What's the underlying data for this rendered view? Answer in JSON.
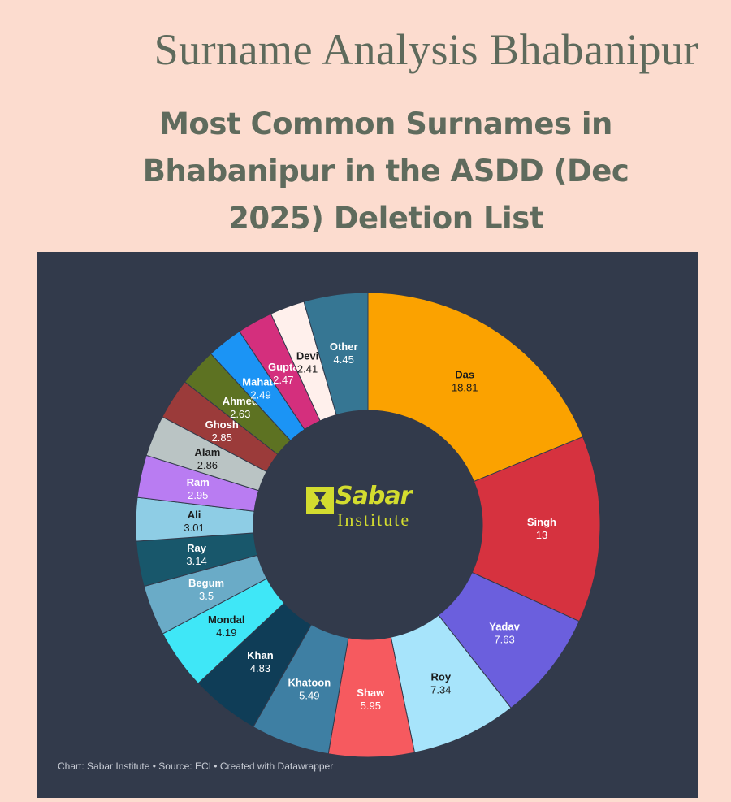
{
  "page_title": "Surname Analysis Bhabanipur",
  "chart_data": {
    "type": "pie",
    "title": "Most Common Surnames in Bhabanipur in the ASDD (Dec 2025) Deletion List",
    "footer": "Chart: Sabar Institute • Source: ECI • Created with Datawrapper",
    "slices": [
      {
        "label": "Das",
        "value": 18.81,
        "value_text": "18.81",
        "color": "#fba200",
        "text_color": "#1b1b1b"
      },
      {
        "label": "Singh",
        "value": 13,
        "value_text": "13",
        "color": "#d6323f",
        "text_color": "#ffffff"
      },
      {
        "label": "Yadav",
        "value": 7.63,
        "value_text": "7.63",
        "color": "#6b5fdd",
        "text_color": "#ffffff"
      },
      {
        "label": "Roy",
        "value": 7.34,
        "value_text": "7.34",
        "color": "#a7e4fb",
        "text_color": "#1b1b1b"
      },
      {
        "label": "Shaw",
        "value": 5.95,
        "value_text": "5.95",
        "color": "#f65a5f",
        "text_color": "#ffffff"
      },
      {
        "label": "Khatoon",
        "value": 5.49,
        "value_text": "5.49",
        "color": "#3e7fa3",
        "text_color": "#ffffff"
      },
      {
        "label": "Khan",
        "value": 4.83,
        "value_text": "4.83",
        "color": "#0f3d57",
        "text_color": "#ffffff"
      },
      {
        "label": "Mondal",
        "value": 4.19,
        "value_text": "4.19",
        "color": "#3fe7f7",
        "text_color": "#1b1b1b"
      },
      {
        "label": "Begum",
        "value": 3.5,
        "value_text": "3.5",
        "color": "#6aabc7",
        "text_color": "#ffffff"
      },
      {
        "label": "Ray",
        "value": 3.14,
        "value_text": "3.14",
        "color": "#18576b",
        "text_color": "#ffffff"
      },
      {
        "label": "Ali",
        "value": 3.01,
        "value_text": "3.01",
        "color": "#8ecde5",
        "text_color": "#1b1b1b"
      },
      {
        "label": "Ram",
        "value": 2.95,
        "value_text": "2.95",
        "color": "#b97cf2",
        "text_color": "#ffffff"
      },
      {
        "label": "Alam",
        "value": 2.86,
        "value_text": "2.86",
        "color": "#bac4c4",
        "text_color": "#1b1b1b"
      },
      {
        "label": "Ghosh",
        "value": 2.85,
        "value_text": "2.85",
        "color": "#9b3b3a",
        "text_color": "#ffffff"
      },
      {
        "label": "Ahmed",
        "value": 2.63,
        "value_text": "2.63",
        "color": "#5d7222",
        "text_color": "#ffffff"
      },
      {
        "label": "Mahato",
        "value": 2.49,
        "value_text": "2.49",
        "color": "#1b94f5",
        "text_color": "#ffffff"
      },
      {
        "label": "Gupta",
        "value": 2.47,
        "value_text": "2.47",
        "color": "#d42f7d",
        "text_color": "#ffffff"
      },
      {
        "label": "Devi",
        "value": 2.41,
        "value_text": "2.41",
        "color": "#fff0ec",
        "text_color": "#1b1b1b"
      },
      {
        "label": "Other",
        "value": 4.45,
        "value_text": "4.45",
        "color": "#367693",
        "text_color": "#ffffff"
      }
    ]
  },
  "logo": {
    "word": "Sabar",
    "sub": "Institute",
    "color": "#d3dc2f"
  }
}
